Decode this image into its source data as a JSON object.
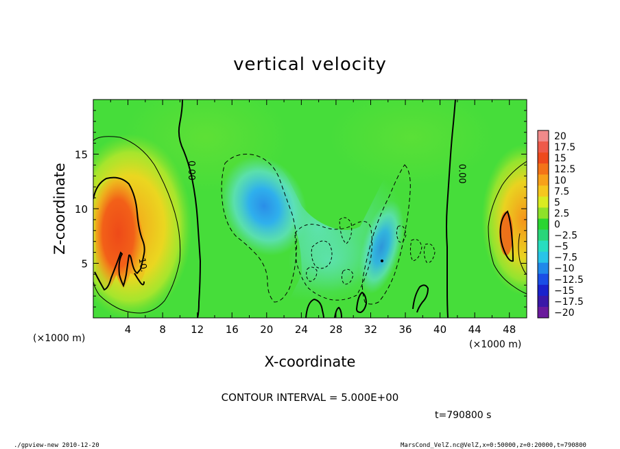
{
  "chart_data": {
    "type": "heatmap",
    "title": "vertical velocity",
    "xlabel": "X-coordinate",
    "ylabel": "Z-coordinate",
    "x_unit_left": "(×1000 m)",
    "x_unit_right": "(×1000 m)",
    "xlim": [
      0,
      50
    ],
    "ylim": [
      0,
      20
    ],
    "x_ticks": [
      4,
      8,
      12,
      16,
      20,
      24,
      28,
      32,
      36,
      40,
      44,
      48
    ],
    "y_ticks": [
      5,
      10,
      15
    ],
    "x_tick_labels": [
      "4",
      "8",
      "12",
      "16",
      "20",
      "24",
      "28",
      "32",
      "36",
      "40",
      "44",
      "48"
    ],
    "y_tick_labels": [
      "5",
      "10",
      "15"
    ],
    "contour_labels": [
      {
        "text": "0.00",
        "x": 11.0,
        "z": 13.5,
        "rotate": 90
      },
      {
        "text": "0.00",
        "x": 42.2,
        "z": 13.2,
        "rotate": 90
      },
      {
        "text": "10.",
        "x": 5.4,
        "z": 4.8,
        "rotate": 80
      }
    ],
    "colorbar": {
      "levels": [
        20,
        17.5,
        15,
        12.5,
        10,
        7.5,
        5,
        2.5,
        0,
        -2.5,
        -5,
        -7.5,
        -10,
        -12.5,
        -15,
        -17.5,
        -20
      ],
      "labels": [
        "20",
        "17.5",
        "15",
        "12.5",
        "10",
        "7.5",
        "5",
        "2.5",
        "0",
        "−2.5",
        "−5",
        "−7.5",
        "−10",
        "−12.5",
        "−15",
        "−17.5",
        "−20"
      ],
      "colors": [
        "#f08a8a",
        "#ee5a4a",
        "#ee4a1c",
        "#f37418",
        "#f7a11a",
        "#f5c71e",
        "#d9ec21",
        "#8ee22a",
        "#2bd631",
        "#2ad67a",
        "#28ddc0",
        "#28c4e8",
        "#2088ea",
        "#1a4ee6",
        "#1a22cc",
        "#3a18a8",
        "#6a1a9c"
      ]
    },
    "contour_interval": "CONTOUR INTERVAL = 5.000E+00",
    "time_label": "t=790800  s"
  },
  "colors": {
    "background_field": "#46dd3a",
    "updraft_core": "#ee5018",
    "downdraft_core": "#2a9ae6"
  },
  "footer": {
    "left": "./gpview-new   2010-12-20",
    "right": "MarsCond_VelZ.nc@VelZ,x=0:50000,z=0:20000,t=790800"
  }
}
